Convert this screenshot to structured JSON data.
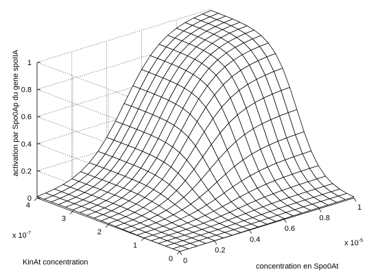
{
  "chart_data": {
    "type": "surface",
    "title": "",
    "zlabel": "activation par Spo0Ap du gene spoIIA",
    "xlabel": "concentration en Spo0At",
    "ylabel": "KinAt concentration",
    "x_multiplier": "x 10",
    "x_exponent": "-5",
    "y_multiplier": "x 10",
    "y_exponent": "-7",
    "xlim": [
      0,
      1e-05
    ],
    "ylim": [
      0,
      4e-07
    ],
    "zlim": [
      0,
      1
    ],
    "x_ticks": [
      0,
      0.2,
      0.4,
      0.6,
      0.8,
      1
    ],
    "y_ticks": [
      0,
      1,
      2,
      3,
      4
    ],
    "z_ticks": [
      0,
      0.2,
      0.4,
      0.6,
      0.8,
      1
    ],
    "x_tick_labels": [
      "0",
      "0.2",
      "0.4",
      "0.6",
      "0.8",
      "1"
    ],
    "y_tick_labels": [
      "0",
      "1",
      "2",
      "3",
      "4"
    ],
    "z_tick_labels": [
      "0",
      "0.2",
      "0.4",
      "0.6",
      "0.8",
      "1"
    ],
    "grid": true,
    "mesh_lines": 21,
    "surface": {
      "description": "z = f(Spo0At) * g(KinAt); sigmoid in both directions",
      "x_midpoint": 5e-06,
      "x_steepness": 9,
      "y_midpoint": 1.6e-07,
      "y_steepness": 12
    }
  }
}
